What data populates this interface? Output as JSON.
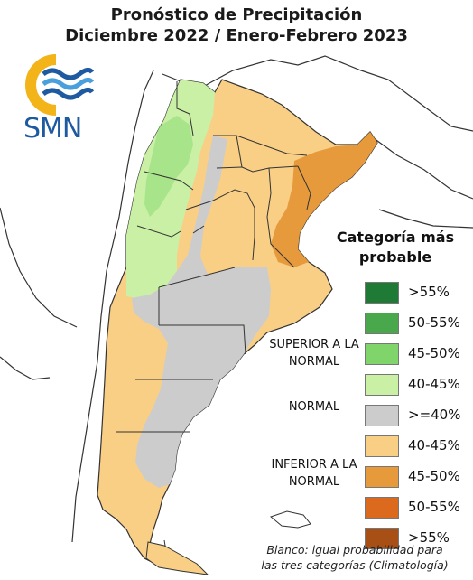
{
  "header": {
    "title_line1": "Pronóstico de Precipitación",
    "title_line2": "Diciembre 2022 / Enero-Febrero 2023"
  },
  "logo": {
    "text": "SMN",
    "icon": "smn-sun-wave-logo"
  },
  "legend": {
    "title_line1": "Categoría más",
    "title_line2": "probable",
    "levels": [
      {
        "label": ">55%",
        "color": "#1e7a34"
      },
      {
        "label": "50-55%",
        "color": "#4aa84c"
      },
      {
        "label": "45-50%",
        "color": "#7fd46a"
      },
      {
        "label": "40-45%",
        "color": "#c9f0a5"
      },
      {
        "label": ">=40%",
        "color": "#cccccc"
      },
      {
        "label": "40-45%",
        "color": "#f9cf86"
      },
      {
        "label": "45-50%",
        "color": "#e69a3c"
      },
      {
        "label": "50-55%",
        "color": "#db6a1e"
      },
      {
        "label": ">55%",
        "color": "#a84f16"
      }
    ],
    "categories": {
      "superior": "SUPERIOR A LA NORMAL",
      "normal": "NORMAL",
      "inferior": "INFERIOR A LA NORMAL"
    }
  },
  "note": {
    "line1": "Blanco: igual probabilidad para",
    "line2": "las tres categorías (Climatología)"
  }
}
